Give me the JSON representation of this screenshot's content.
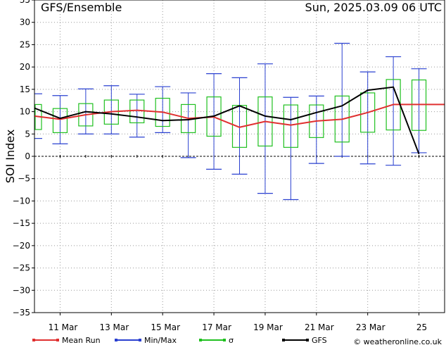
{
  "chart_data": {
    "type": "line",
    "title": "GFS/Ensemble",
    "date_label": "Sun, 2025.03.09  06 UTC",
    "ylabel": "SOI Index",
    "ylim": [
      -35,
      35
    ],
    "yticks": [
      -35,
      -30,
      -25,
      -20,
      -15,
      -10,
      -5,
      0,
      5,
      10,
      15,
      20,
      25,
      30,
      35
    ],
    "xlim": [
      0,
      16
    ],
    "xtick_labels": [
      {
        "x": 1,
        "label": "11 Mar"
      },
      {
        "x": 3,
        "label": "13 Mar"
      },
      {
        "x": 5,
        "label": "15 Mar"
      },
      {
        "x": 7,
        "label": "17 Mar"
      },
      {
        "x": 9,
        "label": "19 Mar"
      },
      {
        "x": 11,
        "label": "21 Mar"
      },
      {
        "x": 13,
        "label": "23 Mar"
      },
      {
        "x": 15,
        "label": "25"
      }
    ],
    "grid": true,
    "steps": [
      0,
      1,
      2,
      3,
      4,
      5,
      6,
      7,
      8,
      9,
      10,
      11,
      12,
      13,
      14,
      15,
      16
    ],
    "series": [
      {
        "name": "Mean Run",
        "color": "#e03030",
        "values": [
          9.0,
          8.3,
          9.3,
          10.0,
          10.3,
          9.9,
          8.5,
          8.8,
          6.5,
          7.8,
          7.0,
          7.9,
          8.3,
          9.8,
          11.6,
          11.6,
          11.6
        ]
      },
      {
        "name": "GFS",
        "color": "#000000",
        "values": [
          10.8,
          8.5,
          10.0,
          9.5,
          8.8,
          8.0,
          8.2,
          9.0,
          11.3,
          9.0,
          8.2,
          9.8,
          11.3,
          14.8,
          15.5,
          0.5,
          null
        ]
      },
      {
        "name": "Min/Max",
        "color": "#2a40d0",
        "min": [
          4.0,
          2.8,
          5.0,
          5.0,
          4.3,
          5.3,
          -0.3,
          -2.9,
          -4.0,
          -8.3,
          -9.7,
          -1.6,
          0.0,
          -1.7,
          -2.0,
          0.8,
          null
        ],
        "max": [
          14.0,
          13.6,
          15.1,
          15.8,
          13.9,
          15.6,
          14.2,
          18.5,
          17.6,
          20.7,
          13.2,
          13.5,
          25.3,
          18.9,
          22.3,
          19.6,
          null
        ]
      },
      {
        "name": "σ",
        "color": "#20c020",
        "low": [
          6.0,
          5.3,
          6.8,
          7.2,
          7.5,
          6.7,
          5.3,
          4.5,
          2.0,
          2.3,
          2.0,
          4.2,
          3.2,
          5.4,
          5.9,
          5.8,
          null
        ],
        "high": [
          11.6,
          10.7,
          11.8,
          12.6,
          12.6,
          13.0,
          11.6,
          13.3,
          11.4,
          13.3,
          11.5,
          11.5,
          13.5,
          14.2,
          17.2,
          17.1,
          null
        ]
      }
    ]
  },
  "legend": [
    {
      "key": "mean",
      "label": "Mean Run",
      "color": "#e03030"
    },
    {
      "key": "minmax",
      "label": "Min/Max",
      "color": "#2a40d0"
    },
    {
      "key": "sigma",
      "label": "σ",
      "color": "#20c020"
    },
    {
      "key": "gfs",
      "label": "GFS",
      "color": "#000000"
    }
  ],
  "copyright": "© weatheronline.co.uk"
}
